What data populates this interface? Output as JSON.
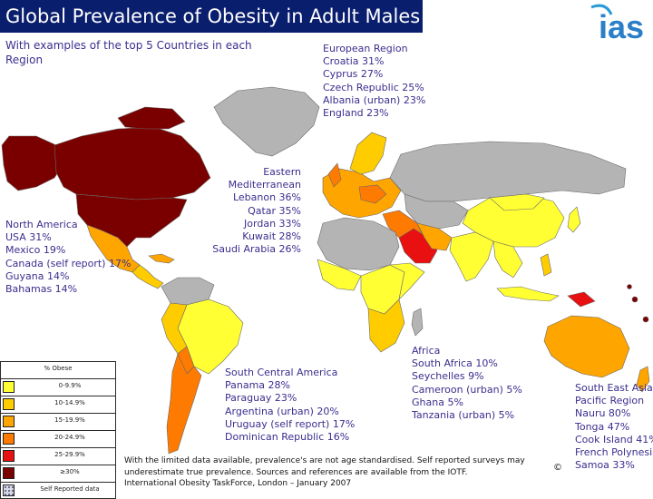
{
  "title": "Global Prevalence of Obesity in Adult Males",
  "subtitle": "With examples of the top 5 Countries in each Region",
  "logo_text": "ias",
  "regions": {
    "europe": {
      "heading": "European Region",
      "items": [
        "Croatia 31%",
        "Cyprus 27%",
        "Czech Republic 25%",
        "Albania (urban) 23%",
        "England 23%"
      ]
    },
    "eastern_med": {
      "heading_line1": "Eastern",
      "heading_line2": "Mediterranean",
      "items": [
        "Lebanon 36%",
        "Qatar 35%",
        "Jordan 33%",
        "Kuwait 28%",
        "Saudi Arabia 26%"
      ]
    },
    "north_america": {
      "heading": "North America",
      "items": [
        "USA 31%",
        "Mexico 19%",
        "Canada (self report) 17%",
        "Guyana 14%",
        "Bahamas 14%"
      ]
    },
    "africa": {
      "heading": "Africa",
      "items": [
        "South Africa 10%",
        "Seychelles 9%",
        "Cameroon (urban) 5%",
        "Ghana 5%",
        "Tanzania (urban) 5%"
      ]
    },
    "south_central_america": {
      "heading": "South Central America",
      "items": [
        "Panama 28%",
        "Paraguay 23%",
        "Argentina (urban) 20%",
        "Uruguay (self report) 17%",
        "Dominican Republic 16%"
      ]
    },
    "south_east_asia": {
      "heading_line1": "South East Asia",
      "heading_line2": "Pacific Region",
      "items": [
        "Nauru 80%",
        "Tonga 47%",
        "Cook Island 41%",
        "French Polynesia",
        "Samoa 33%"
      ]
    }
  },
  "legend": {
    "heading": "% Obese",
    "items": [
      {
        "label": "0-9.9%",
        "color": "#ffff33"
      },
      {
        "label": "10-14.9%",
        "color": "#ffcc00"
      },
      {
        "label": "15-19.9%",
        "color": "#ffa500"
      },
      {
        "label": "20-24.9%",
        "color": "#ff7a00"
      },
      {
        "label": "25-29.9%",
        "color": "#e81010"
      },
      {
        "label": "≥30%",
        "color": "#7a0000"
      },
      {
        "label": "Self Reported data",
        "color": "#d9dae8"
      }
    ]
  },
  "footnote": {
    "line1": "With the limited data available, prevalence's are not age standardised.  Self reported surveys may",
    "line2": "underestimate true prevalence.   Sources and references are available from the IOTF.",
    "line3": "International Obesity TaskForce, London – January 2007"
  },
  "copyright": "©",
  "colors": {
    "title_bg": "#0a1e6e",
    "text": "#3a2e8e",
    "no_data": "#b4b4b4",
    "ocean": "#ffffff"
  }
}
